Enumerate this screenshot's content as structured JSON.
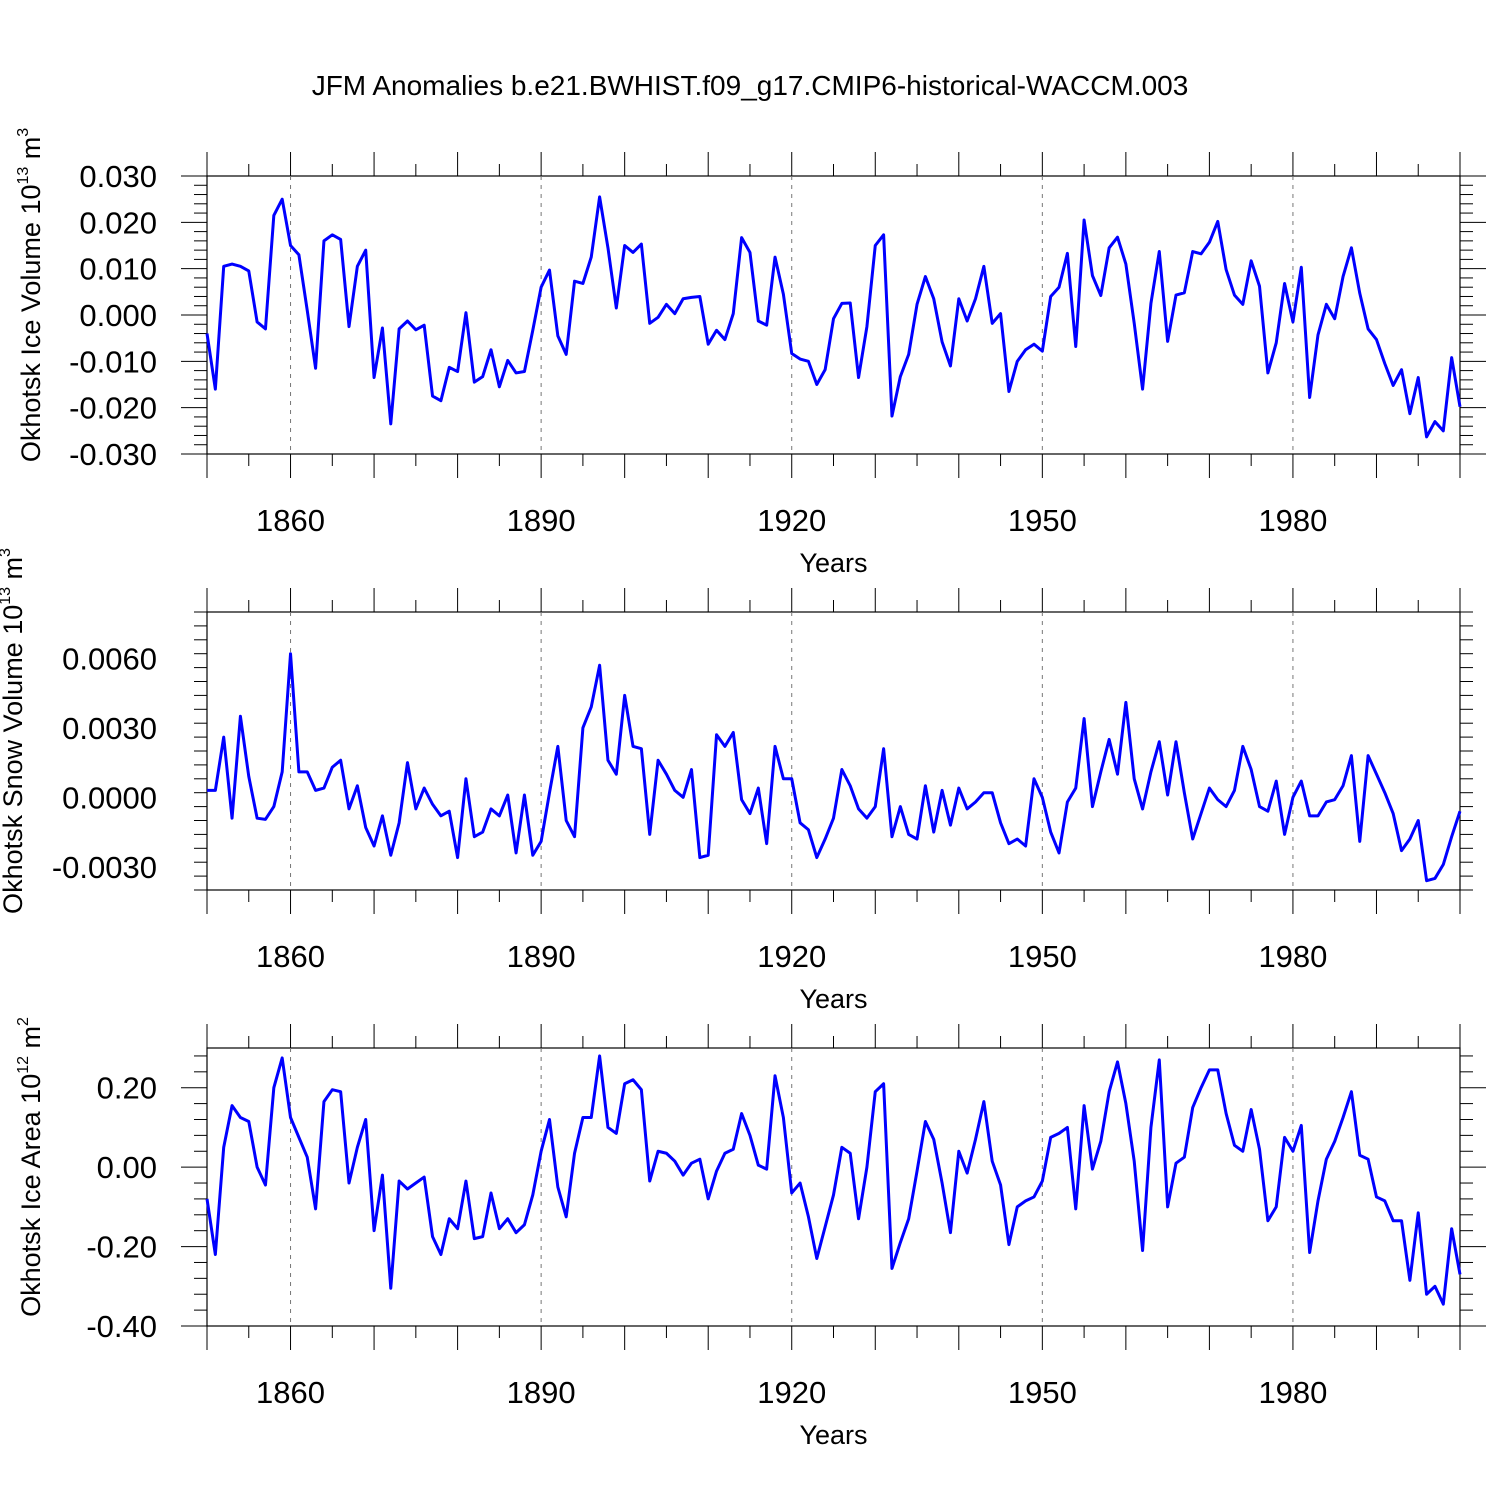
{
  "title": "JFM Anomalies b.e21.BWHIST.f09_g17.CMIP6-historical-WACCM.003",
  "chart_data": [
    {
      "type": "line",
      "xlabel": "Years",
      "ylabel": {
        "main": "Okhotsk Ice Volume 10",
        "sup": "13",
        "unit": " m",
        "unit_sup": "3"
      },
      "ylim": [
        -0.03,
        0.03
      ],
      "xlim": [
        1850,
        2000
      ],
      "x_ticks": [
        1860,
        1890,
        1920,
        1950,
        1980
      ],
      "y_ticks": [
        0.03,
        0.02,
        0.01,
        0.0,
        -0.01,
        -0.02,
        -0.03
      ],
      "y_tick_labels": [
        "0.030",
        "0.020",
        "0.010",
        "0.000",
        "-0.010",
        "-0.020",
        "-0.030"
      ],
      "x_start": 1850,
      "color": "#0000ff",
      "values": [
        -0.004,
        -0.016,
        0.0105,
        0.011,
        0.0105,
        0.0095,
        -0.0015,
        -0.003,
        0.0215,
        0.025,
        0.015,
        0.013,
        0.001,
        -0.0115,
        0.016,
        0.0173,
        0.0163,
        -0.0025,
        0.0105,
        0.014,
        -0.0135,
        -0.0028,
        -0.0235,
        -0.003,
        -0.0013,
        -0.0032,
        -0.0022,
        -0.0175,
        -0.0185,
        -0.0113,
        -0.0122,
        0.0005,
        -0.0145,
        -0.0133,
        -0.0075,
        -0.0155,
        -0.0098,
        -0.0125,
        -0.0122,
        -0.0033,
        0.006,
        0.0097,
        -0.0045,
        -0.0085,
        0.0073,
        0.0068,
        0.0125,
        0.0255,
        0.0145,
        0.0015,
        0.015,
        0.0135,
        0.0153,
        -0.0018,
        -0.0005,
        0.0023,
        0.0003,
        0.0035,
        0.0038,
        0.004,
        -0.0063,
        -0.0033,
        -0.0053,
        0.0003,
        0.0167,
        0.0135,
        -0.0013,
        -0.0022,
        0.0125,
        0.0045,
        -0.0083,
        -0.0095,
        -0.01,
        -0.015,
        -0.0118,
        -0.0008,
        0.0025,
        0.0026,
        -0.0135,
        -0.0025,
        0.015,
        0.0173,
        -0.0218,
        -0.0133,
        -0.0085,
        0.0023,
        0.0083,
        0.0035,
        -0.0058,
        -0.011,
        0.0035,
        -0.0013,
        0.0035,
        0.0105,
        -0.0018,
        0.0003,
        -0.0165,
        -0.01,
        -0.0075,
        -0.0063,
        -0.0078,
        0.004,
        0.006,
        0.0133,
        -0.0068,
        0.0205,
        0.0085,
        0.0042,
        0.0145,
        0.0168,
        0.011,
        -0.0018,
        -0.016,
        0.0025,
        0.0137,
        -0.0057,
        0.0043,
        0.0048,
        0.0137,
        0.0132,
        0.0157,
        0.0202,
        0.0098,
        0.0043,
        0.0023,
        0.0117,
        0.0062,
        -0.0125,
        -0.006,
        0.0068,
        -0.0015,
        0.0103,
        -0.0178,
        -0.0043,
        0.0023,
        -0.0008,
        0.0083,
        0.0145,
        0.0047,
        -0.003,
        -0.0053,
        -0.0105,
        -0.0152,
        -0.0118,
        -0.0213,
        -0.0135,
        -0.0263,
        -0.023,
        -0.025,
        -0.0092,
        -0.0198
      ]
    },
    {
      "type": "line",
      "xlabel": "Years",
      "ylabel": {
        "main": "Okhotsk Snow Volume 10",
        "sup": "13",
        "unit": " m",
        "unit_sup": "3"
      },
      "ylim": [
        -0.004,
        0.008
      ],
      "xlim": [
        1850,
        2000
      ],
      "x_ticks": [
        1860,
        1890,
        1920,
        1950,
        1980
      ],
      "y_ticks": [
        0.006,
        0.003,
        0.0,
        -0.003
      ],
      "y_tick_labels": [
        "0.0060",
        "0.0030",
        "0.0000",
        "-0.0030"
      ],
      "x_start": 1850,
      "color": "#0000ff",
      "values": [
        0.0003,
        0.0003,
        0.0026,
        -0.0009,
        0.0035,
        0.0009,
        -0.0009,
        -0.00095,
        -0.0004,
        0.0011,
        0.0062,
        0.0011,
        0.0011,
        0.0003,
        0.0004,
        0.0013,
        0.0016,
        -0.0005,
        0.0005,
        -0.0013,
        -0.0021,
        -0.0008,
        -0.0025,
        -0.0011,
        0.0015,
        -0.0005,
        0.0004,
        -0.0003,
        -0.0008,
        -0.0006,
        -0.0026,
        0.0008,
        -0.0017,
        -0.0015,
        -0.0005,
        -0.0008,
        0.0001,
        -0.0024,
        0.0001,
        -0.0025,
        -0.0019,
        0.0002,
        0.0022,
        -0.001,
        -0.0017,
        0.003,
        0.0039,
        0.0057,
        0.0016,
        0.001,
        0.0044,
        0.0022,
        0.0021,
        -0.0016,
        0.0016,
        0.001,
        0.0003,
        0.0,
        0.0012,
        -0.0026,
        -0.0025,
        0.0027,
        0.0022,
        0.0028,
        -0.0001,
        -0.0007,
        0.0004,
        -0.002,
        0.0022,
        0.0008,
        0.0008,
        -0.0011,
        -0.0014,
        -0.0026,
        -0.0018,
        -0.0009,
        0.0012,
        0.0005,
        -0.0005,
        -0.0009,
        -0.0004,
        0.0021,
        -0.0017,
        -0.0004,
        -0.0016,
        -0.0018,
        0.0005,
        -0.0015,
        0.0003,
        -0.0012,
        0.0004,
        -0.0005,
        -0.0002,
        0.0002,
        0.0002,
        -0.0011,
        -0.002,
        -0.0018,
        -0.0021,
        0.0008,
        0.0,
        -0.0015,
        -0.0024,
        -0.0002,
        0.0004,
        0.0034,
        -0.0004,
        0.0011,
        0.0025,
        0.001,
        0.0041,
        0.0008,
        -0.0005,
        0.0011,
        0.0024,
        0.0001,
        0.0024,
        0.0002,
        -0.0018,
        -0.0007,
        0.0004,
        -0.0001,
        -0.0004,
        0.0003,
        0.0022,
        0.0012,
        -0.0004,
        -0.0006,
        0.0007,
        -0.0016,
        0.0,
        0.0007,
        -0.0008,
        -0.0008,
        -0.0002,
        -0.0001,
        0.0005,
        0.0018,
        -0.0019,
        0.0018,
        0.001,
        0.0002,
        -0.0007,
        -0.0023,
        -0.0018,
        -0.001,
        -0.0036,
        -0.0035,
        -0.0029,
        -0.0017,
        -0.0006
      ]
    },
    {
      "type": "line",
      "xlabel": "Years",
      "ylabel": {
        "main": "Okhotsk Ice Area 10",
        "sup": "12",
        "unit": " m",
        "unit_sup": "2"
      },
      "ylim": [
        -0.4,
        0.3
      ],
      "xlim": [
        1850,
        2000
      ],
      "x_ticks": [
        1860,
        1890,
        1920,
        1950,
        1980
      ],
      "y_ticks": [
        0.2,
        0.0,
        -0.2,
        -0.4
      ],
      "y_tick_labels": [
        "0.20",
        "0.00",
        "-0.20",
        "-0.40"
      ],
      "x_start": 1850,
      "color": "#0000ff",
      "values": [
        -0.08,
        -0.22,
        0.05,
        0.155,
        0.125,
        0.115,
        0.0,
        -0.045,
        0.2,
        0.275,
        0.125,
        0.075,
        0.025,
        -0.105,
        0.165,
        0.195,
        0.19,
        -0.04,
        0.05,
        0.12,
        -0.16,
        -0.02,
        -0.305,
        -0.035,
        -0.055,
        -0.04,
        -0.025,
        -0.175,
        -0.22,
        -0.13,
        -0.155,
        -0.035,
        -0.18,
        -0.175,
        -0.065,
        -0.155,
        -0.13,
        -0.165,
        -0.145,
        -0.07,
        0.04,
        0.12,
        -0.05,
        -0.125,
        0.035,
        0.125,
        0.125,
        0.28,
        0.1,
        0.085,
        0.21,
        0.22,
        0.195,
        -0.035,
        0.04,
        0.035,
        0.015,
        -0.02,
        0.01,
        0.02,
        -0.08,
        -0.01,
        0.035,
        0.045,
        0.135,
        0.08,
        0.005,
        -0.005,
        0.23,
        0.125,
        -0.065,
        -0.04,
        -0.125,
        -0.23,
        -0.15,
        -0.07,
        0.05,
        0.035,
        -0.13,
        0.0,
        0.19,
        0.21,
        -0.255,
        -0.19,
        -0.13,
        -0.01,
        0.115,
        0.07,
        -0.04,
        -0.165,
        0.04,
        -0.015,
        0.07,
        0.165,
        0.015,
        -0.045,
        -0.195,
        -0.1,
        -0.085,
        -0.075,
        -0.035,
        0.075,
        0.085,
        0.1,
        -0.105,
        0.155,
        -0.005,
        0.065,
        0.19,
        0.265,
        0.16,
        0.015,
        -0.21,
        0.1,
        0.27,
        -0.1,
        0.01,
        0.025,
        0.15,
        0.2,
        0.245,
        0.245,
        0.135,
        0.055,
        0.04,
        0.145,
        0.045,
        -0.135,
        -0.1,
        0.075,
        0.04,
        0.105,
        -0.215,
        -0.085,
        0.02,
        0.065,
        0.125,
        0.19,
        0.03,
        0.02,
        -0.075,
        -0.085,
        -0.135,
        -0.135,
        -0.285,
        -0.115,
        -0.32,
        -0.3,
        -0.345,
        -0.155,
        -0.27
      ]
    }
  ]
}
